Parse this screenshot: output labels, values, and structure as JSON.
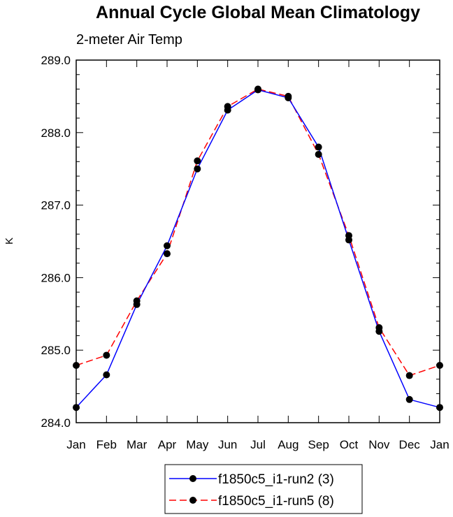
{
  "chart_data": {
    "type": "line",
    "title": "Annual Cycle Global Mean Climatology",
    "subtitle": "2-meter Air Temp",
    "xlabel": "",
    "ylabel": "K",
    "ylim": [
      284.0,
      289.0
    ],
    "yticks": [
      "284.0",
      "285.0",
      "286.0",
      "287.0",
      "288.0",
      "289.0"
    ],
    "categories": [
      "Jan",
      "Feb",
      "Mar",
      "Apr",
      "May",
      "Jun",
      "Jul",
      "Aug",
      "Sep",
      "Oct",
      "Nov",
      "Dec",
      "Jan"
    ],
    "series": [
      {
        "name": "f1850c5_i1-run2 (3)",
        "color": "#0000ff",
        "dash": "solid",
        "values": [
          284.21,
          284.66,
          285.63,
          286.44,
          287.5,
          288.31,
          288.59,
          288.48,
          287.8,
          286.52,
          285.26,
          284.32,
          284.21
        ]
      },
      {
        "name": "f1850c5_i1-run5 (8)",
        "color": "#ff0000",
        "dash": "dashed",
        "values": [
          284.79,
          284.93,
          285.68,
          286.33,
          287.61,
          288.36,
          288.6,
          288.5,
          287.7,
          286.58,
          285.31,
          284.65,
          284.79
        ]
      }
    ],
    "grid": false,
    "legend": "bottom"
  }
}
